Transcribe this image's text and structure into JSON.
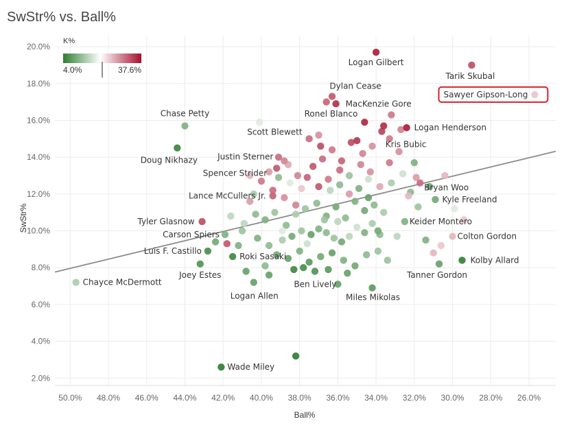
{
  "title": "SwStr% vs. Ball%",
  "chart_data": {
    "type": "scatter",
    "title": "SwStr% vs. Ball%",
    "xlabel": "Ball%",
    "ylabel": "SwStr%",
    "x_reversed": true,
    "xlim": [
      50.8,
      24.6
    ],
    "ylim": [
      1.6,
      20.6
    ],
    "x_ticks": [
      "50.0%",
      "48.0%",
      "46.0%",
      "44.0%",
      "42.0%",
      "40.0%",
      "38.0%",
      "36.0%",
      "34.0%",
      "32.0%",
      "30.0%",
      "28.0%",
      "26.0%"
    ],
    "y_ticks": [
      "2.0%",
      "4.0%",
      "6.0%",
      "8.0%",
      "10.0%",
      "12.0%",
      "14.0%",
      "16.0%",
      "18.0%",
      "20.0%"
    ],
    "grid": true,
    "trendline": {
      "x": [
        50.8,
        24.6
      ],
      "y": [
        7.76,
        14.32
      ]
    },
    "color_legend": {
      "title": "K%",
      "min_label": "4.0%",
      "max_label": "37.6%",
      "min": 4.0,
      "max": 37.6,
      "mid": 20.0,
      "colors": [
        "#2e7d32",
        "#ffffff",
        "#a50f2d"
      ],
      "placement": "top-left"
    },
    "labeled_points": [
      {
        "name": "Logan Gilbert",
        "x": 34.0,
        "y": 19.7,
        "k": 36
      },
      {
        "name": "Tarik Skubal",
        "x": 29.0,
        "y": 19.0,
        "k": 31
      },
      {
        "name": "Sawyer Gipson-Long",
        "x": 25.7,
        "y": 17.4,
        "k": 21,
        "highlight": true
      },
      {
        "name": "Dylan Cease",
        "x": 36.3,
        "y": 17.3,
        "k": 30
      },
      {
        "name": "MacKenzie Gore",
        "x": 36.1,
        "y": 16.9,
        "k": 34
      },
      {
        "name": "Ronel Blanco",
        "x": 34.6,
        "y": 15.9,
        "k": 35
      },
      {
        "name": "Logan Henderson",
        "x": 32.4,
        "y": 15.6,
        "k": 36
      },
      {
        "name": "Chase Petty",
        "x": 44.0,
        "y": 15.7,
        "k": 14
      },
      {
        "name": "Scott Blewett",
        "x": 37.5,
        "y": 15.0,
        "k": 28
      },
      {
        "name": "Kris Bubic",
        "x": 33.3,
        "y": 15.0,
        "k": 27
      },
      {
        "name": "Doug Nikhazy",
        "x": 44.4,
        "y": 14.5,
        "k": 7
      },
      {
        "name": "Justin Sterner",
        "x": 38.8,
        "y": 13.8,
        "k": 26
      },
      {
        "name": "Spencer Strider",
        "x": 39.2,
        "y": 13.4,
        "k": 30
      },
      {
        "name": "Bryan Woo",
        "x": 31.7,
        "y": 12.6,
        "k": 28
      },
      {
        "name": "Lance McCullers Jr.",
        "x": 39.4,
        "y": 11.9,
        "k": 29
      },
      {
        "name": "Kyle Freeland",
        "x": 30.9,
        "y": 11.7,
        "k": 13
      },
      {
        "name": "Tyler Glasnow",
        "x": 43.1,
        "y": 10.5,
        "k": 31
      },
      {
        "name": "Keider Montero",
        "x": 32.5,
        "y": 10.5,
        "k": 14
      },
      {
        "name": "Carson Spiers",
        "x": 41.9,
        "y": 9.8,
        "k": 14
      },
      {
        "name": "Colton Gordon",
        "x": 30.0,
        "y": 9.7,
        "k": 22
      },
      {
        "name": "Luis F. Castillo",
        "x": 42.8,
        "y": 8.9,
        "k": 9
      },
      {
        "name": "Roki Sasaki",
        "x": 41.5,
        "y": 8.6,
        "k": 8
      },
      {
        "name": "Kolby Allard",
        "x": 29.5,
        "y": 8.4,
        "k": 6
      },
      {
        "name": "Joey Estes",
        "x": 43.2,
        "y": 8.2,
        "k": 10
      },
      {
        "name": "Tanner Gordon",
        "x": 30.7,
        "y": 8.2,
        "k": 12
      },
      {
        "name": "Chayce McDermott",
        "x": 49.7,
        "y": 7.2,
        "k": 17
      },
      {
        "name": "Ben Lively",
        "x": 36.0,
        "y": 7.1,
        "k": 12
      },
      {
        "name": "Logan Allen",
        "x": 40.4,
        "y": 7.2,
        "k": 12
      },
      {
        "name": "Miles Mikolas",
        "x": 34.2,
        "y": 6.9,
        "k": 11
      },
      {
        "name": "Wade Miley",
        "x": 42.1,
        "y": 2.6,
        "k": 5
      }
    ],
    "points": [
      {
        "x": 38.2,
        "y": 3.2,
        "k": 5
      },
      {
        "x": 40.2,
        "y": 9.6,
        "k": 14
      },
      {
        "x": 39.6,
        "y": 9.2,
        "k": 15
      },
      {
        "x": 38.9,
        "y": 9.5,
        "k": 17
      },
      {
        "x": 38.4,
        "y": 9.7,
        "k": 13
      },
      {
        "x": 37.9,
        "y": 10.0,
        "k": 16
      },
      {
        "x": 37.4,
        "y": 9.8,
        "k": 12
      },
      {
        "x": 37.0,
        "y": 10.1,
        "k": 14
      },
      {
        "x": 36.6,
        "y": 9.9,
        "k": 15
      },
      {
        "x": 36.2,
        "y": 9.6,
        "k": 16
      },
      {
        "x": 35.8,
        "y": 9.4,
        "k": 13
      },
      {
        "x": 35.4,
        "y": 9.7,
        "k": 18
      },
      {
        "x": 35.0,
        "y": 10.2,
        "k": 19
      },
      {
        "x": 34.6,
        "y": 9.9,
        "k": 14
      },
      {
        "x": 34.2,
        "y": 10.4,
        "k": 17
      },
      {
        "x": 33.8,
        "y": 9.8,
        "k": 15
      },
      {
        "x": 39.2,
        "y": 8.7,
        "k": 13
      },
      {
        "x": 38.6,
        "y": 8.5,
        "k": 12
      },
      {
        "x": 38.0,
        "y": 8.9,
        "k": 14
      },
      {
        "x": 37.5,
        "y": 8.3,
        "k": 11
      },
      {
        "x": 36.9,
        "y": 8.6,
        "k": 13
      },
      {
        "x": 36.3,
        "y": 8.8,
        "k": 12
      },
      {
        "x": 35.7,
        "y": 8.4,
        "k": 14
      },
      {
        "x": 35.1,
        "y": 8.1,
        "k": 13
      },
      {
        "x": 34.5,
        "y": 8.7,
        "k": 15
      },
      {
        "x": 33.9,
        "y": 8.9,
        "k": 16
      },
      {
        "x": 37.8,
        "y": 8.0,
        "k": 9
      },
      {
        "x": 38.3,
        "y": 7.9,
        "k": 8
      },
      {
        "x": 37.2,
        "y": 7.8,
        "k": 10
      },
      {
        "x": 36.5,
        "y": 7.9,
        "k": 11
      },
      {
        "x": 35.5,
        "y": 7.7,
        "k": 12
      },
      {
        "x": 39.6,
        "y": 7.6,
        "k": 12
      },
      {
        "x": 40.8,
        "y": 7.8,
        "k": 12
      },
      {
        "x": 41.2,
        "y": 9.2,
        "k": 14
      },
      {
        "x": 40.9,
        "y": 10.4,
        "k": 18
      },
      {
        "x": 40.3,
        "y": 10.9,
        "k": 15
      },
      {
        "x": 39.8,
        "y": 10.6,
        "k": 14
      },
      {
        "x": 39.3,
        "y": 11.0,
        "k": 16
      },
      {
        "x": 38.7,
        "y": 10.3,
        "k": 15
      },
      {
        "x": 38.2,
        "y": 10.9,
        "k": 17
      },
      {
        "x": 37.7,
        "y": 11.2,
        "k": 16
      },
      {
        "x": 37.1,
        "y": 11.5,
        "k": 15
      },
      {
        "x": 36.6,
        "y": 10.8,
        "k": 14
      },
      {
        "x": 36.1,
        "y": 11.3,
        "k": 13
      },
      {
        "x": 35.6,
        "y": 10.7,
        "k": 15
      },
      {
        "x": 35.1,
        "y": 11.6,
        "k": 14
      },
      {
        "x": 34.6,
        "y": 11.1,
        "k": 13
      },
      {
        "x": 34.1,
        "y": 11.4,
        "k": 15
      },
      {
        "x": 33.6,
        "y": 11.0,
        "k": 17
      },
      {
        "x": 36.4,
        "y": 12.2,
        "k": 18
      },
      {
        "x": 35.9,
        "y": 12.5,
        "k": 15
      },
      {
        "x": 35.4,
        "y": 13.0,
        "k": 16
      },
      {
        "x": 34.9,
        "y": 12.3,
        "k": 14
      },
      {
        "x": 34.4,
        "y": 12.8,
        "k": 19
      },
      {
        "x": 33.2,
        "y": 12.6,
        "k": 17
      },
      {
        "x": 32.6,
        "y": 13.1,
        "k": 19
      },
      {
        "x": 32.2,
        "y": 12.1,
        "k": 15
      },
      {
        "x": 31.8,
        "y": 11.3,
        "k": 16
      },
      {
        "x": 39.1,
        "y": 12.9,
        "k": 15
      },
      {
        "x": 38.5,
        "y": 12.6,
        "k": 20
      },
      {
        "x": 37.9,
        "y": 12.3,
        "k": 21
      },
      {
        "x": 40.4,
        "y": 12.0,
        "k": 17
      },
      {
        "x": 41.0,
        "y": 10.0,
        "k": 16
      },
      {
        "x": 38.9,
        "y": 10.0,
        "k": 20
      },
      {
        "x": 40.6,
        "y": 11.6,
        "k": 24
      },
      {
        "x": 40.0,
        "y": 12.7,
        "k": 27
      },
      {
        "x": 39.4,
        "y": 12.2,
        "k": 28
      },
      {
        "x": 38.8,
        "y": 11.8,
        "k": 25
      },
      {
        "x": 38.2,
        "y": 11.4,
        "k": 26
      },
      {
        "x": 37.6,
        "y": 12.9,
        "k": 29
      },
      {
        "x": 37.0,
        "y": 12.4,
        "k": 30
      },
      {
        "x": 36.5,
        "y": 12.8,
        "k": 27
      },
      {
        "x": 35.9,
        "y": 13.3,
        "k": 28
      },
      {
        "x": 35.4,
        "y": 12.0,
        "k": 24
      },
      {
        "x": 34.8,
        "y": 13.6,
        "k": 26
      },
      {
        "x": 34.3,
        "y": 13.2,
        "k": 25
      },
      {
        "x": 33.8,
        "y": 12.4,
        "k": 23
      },
      {
        "x": 33.3,
        "y": 13.7,
        "k": 27
      },
      {
        "x": 32.8,
        "y": 14.3,
        "k": 25
      },
      {
        "x": 32.3,
        "y": 11.9,
        "k": 22
      },
      {
        "x": 31.9,
        "y": 12.9,
        "k": 24
      },
      {
        "x": 37.3,
        "y": 13.5,
        "k": 30
      },
      {
        "x": 36.8,
        "y": 13.9,
        "k": 28
      },
      {
        "x": 36.3,
        "y": 14.4,
        "k": 27
      },
      {
        "x": 35.8,
        "y": 13.8,
        "k": 29
      },
      {
        "x": 35.3,
        "y": 14.8,
        "k": 31
      },
      {
        "x": 34.7,
        "y": 14.2,
        "k": 26
      },
      {
        "x": 34.2,
        "y": 14.6,
        "k": 25
      },
      {
        "x": 33.7,
        "y": 15.4,
        "k": 32
      },
      {
        "x": 33.2,
        "y": 16.3,
        "k": 27
      },
      {
        "x": 32.7,
        "y": 15.5,
        "k": 26
      },
      {
        "x": 37.0,
        "y": 15.2,
        "k": 25
      },
      {
        "x": 36.9,
        "y": 14.6,
        "k": 31
      },
      {
        "x": 35.0,
        "y": 14.9,
        "k": 33
      },
      {
        "x": 33.6,
        "y": 15.7,
        "k": 34
      },
      {
        "x": 38.1,
        "y": 13.0,
        "k": 26
      },
      {
        "x": 39.6,
        "y": 13.2,
        "k": 24
      },
      {
        "x": 40.6,
        "y": 13.0,
        "k": 22
      },
      {
        "x": 39.1,
        "y": 14.0,
        "k": 28
      },
      {
        "x": 38.6,
        "y": 13.6,
        "k": 23
      },
      {
        "x": 40.1,
        "y": 15.9,
        "k": 20
      },
      {
        "x": 36.6,
        "y": 17.0,
        "k": 29
      },
      {
        "x": 34.4,
        "y": 11.8,
        "k": 12
      },
      {
        "x": 33.9,
        "y": 10.0,
        "k": 13
      },
      {
        "x": 32.9,
        "y": 9.7,
        "k": 18
      },
      {
        "x": 31.4,
        "y": 9.5,
        "k": 14
      },
      {
        "x": 30.6,
        "y": 9.2,
        "k": 21
      },
      {
        "x": 31.0,
        "y": 8.8,
        "k": 22
      },
      {
        "x": 33.4,
        "y": 8.4,
        "k": 16
      },
      {
        "x": 32.0,
        "y": 13.7,
        "k": 14
      },
      {
        "x": 31.2,
        "y": 12.4,
        "k": 13
      },
      {
        "x": 29.9,
        "y": 11.2,
        "k": 20
      },
      {
        "x": 29.4,
        "y": 10.6,
        "k": 21
      },
      {
        "x": 30.4,
        "y": 13.0,
        "k": 22
      },
      {
        "x": 36.0,
        "y": 10.5,
        "k": 18
      },
      {
        "x": 37.6,
        "y": 9.3,
        "k": 19
      },
      {
        "x": 39.8,
        "y": 8.1,
        "k": 15
      },
      {
        "x": 41.6,
        "y": 10.8,
        "k": 18
      },
      {
        "x": 42.4,
        "y": 9.4,
        "k": 13
      },
      {
        "x": 41.8,
        "y": 9.3,
        "k": 30
      },
      {
        "x": 36.7,
        "y": 10.6,
        "k": 16
      }
    ]
  }
}
